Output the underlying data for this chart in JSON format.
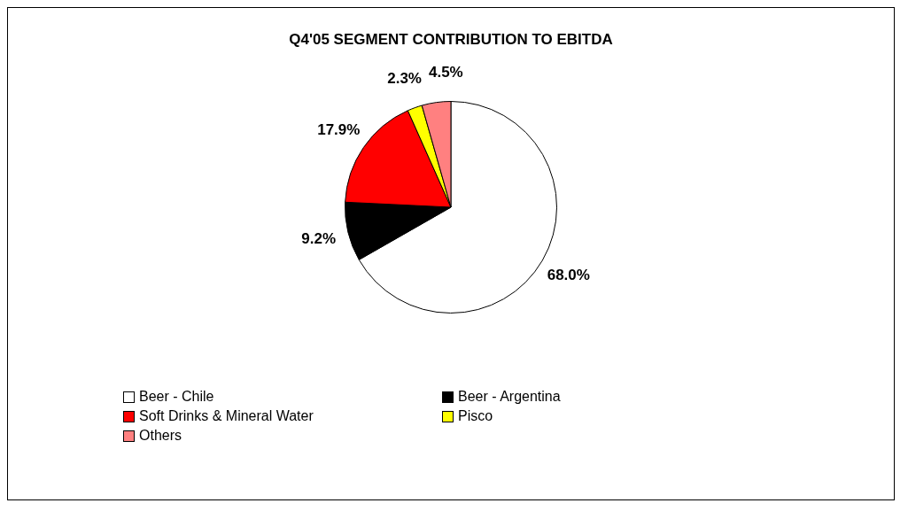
{
  "chart_data": {
    "type": "pie",
    "title": "Q4'05 SEGMENT CONTRIBUTION TO EBITDA",
    "categories": [
      "Beer - Chile",
      "Beer - Argentina",
      "Soft Drinks & Mineral Water",
      "Pisco",
      "Others"
    ],
    "values": [
      68.0,
      9.2,
      17.9,
      2.3,
      4.5
    ],
    "value_labels": [
      "68.0%",
      "9.2%",
      "17.9%",
      "2.3%",
      "4.5%"
    ],
    "colors": [
      "#ffffff",
      "#000000",
      "#ff0000",
      "#ffff00",
      "#ff8080"
    ],
    "legend": "bottom"
  }
}
